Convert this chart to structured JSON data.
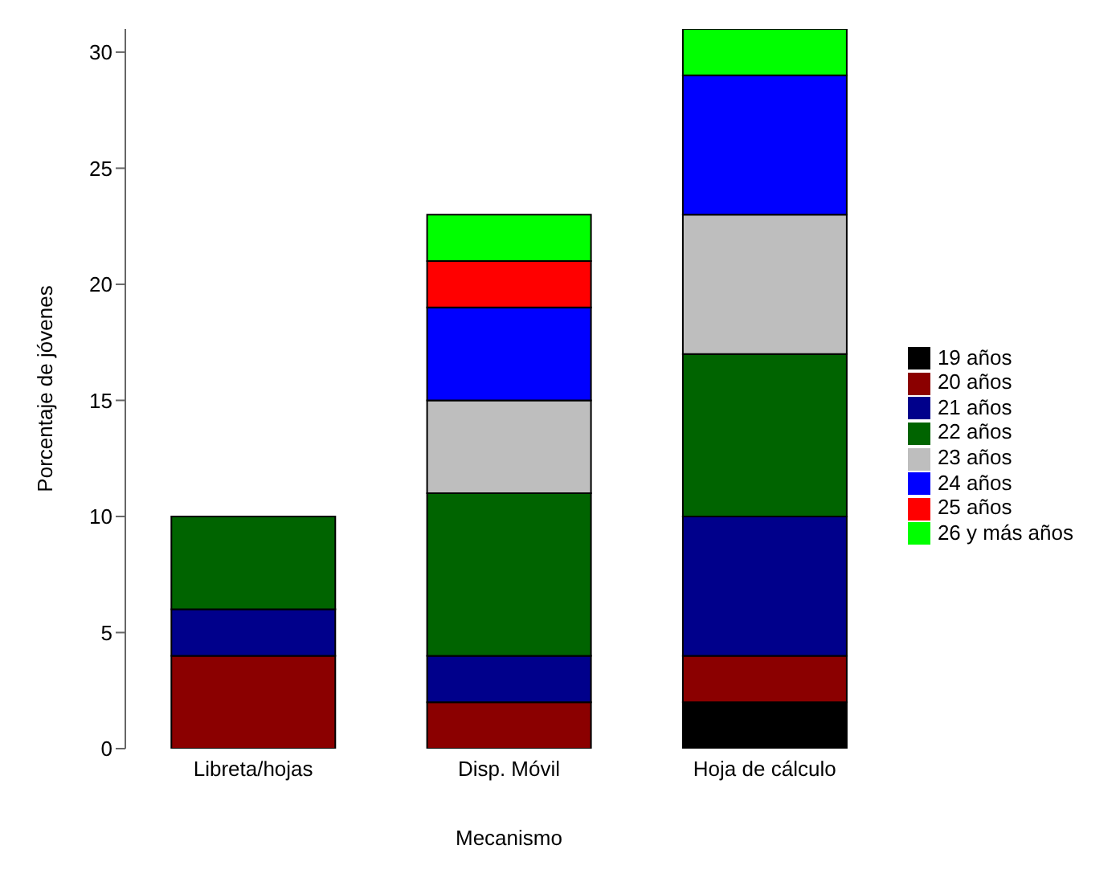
{
  "chart_data": {
    "type": "bar",
    "stacked": true,
    "xlabel": "Mecanismo",
    "ylabel": "Porcentaje de jóvenes",
    "categories": [
      "Libreta/hojas",
      "Disp. Móvil",
      "Hoja de cálculo"
    ],
    "series": [
      {
        "name": "19 años",
        "color": "#000000",
        "values": [
          0,
          0,
          2
        ]
      },
      {
        "name": "20 años",
        "color": "#8b0000",
        "values": [
          4,
          2,
          2
        ]
      },
      {
        "name": "21 años",
        "color": "#00008b",
        "values": [
          2,
          2,
          6
        ]
      },
      {
        "name": "22 años",
        "color": "#006400",
        "values": [
          4,
          7,
          7
        ]
      },
      {
        "name": "23 años",
        "color": "#bebebe",
        "values": [
          0,
          4,
          6
        ]
      },
      {
        "name": "24 años",
        "color": "#0000ff",
        "values": [
          0,
          4,
          6
        ]
      },
      {
        "name": "25 años",
        "color": "#ff0000",
        "values": [
          0,
          2,
          0
        ]
      },
      {
        "name": "26 y más años",
        "color": "#00ff00",
        "values": [
          0,
          2,
          2
        ]
      }
    ],
    "ylim": [
      0,
      31
    ],
    "yticks": [
      0,
      5,
      10,
      15,
      20,
      25,
      30
    ],
    "legend": "right"
  }
}
